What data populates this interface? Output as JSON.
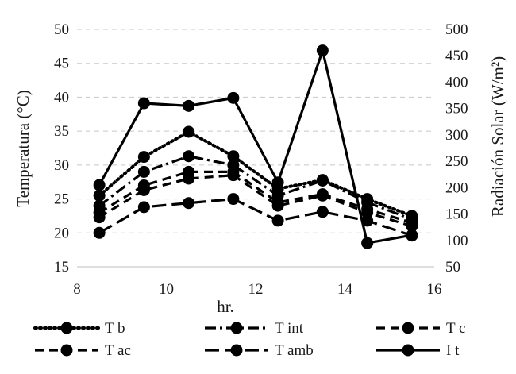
{
  "chart_data": {
    "type": "line",
    "xlabel": "hr.",
    "ylabel": "Temperatura (°C)",
    "y2label": "Radiación Solar (W/m²)",
    "xlim": [
      8,
      16
    ],
    "ylim": [
      15,
      50
    ],
    "y2lim": [
      50,
      500
    ],
    "xticks": [
      8,
      10,
      12,
      14,
      16
    ],
    "yticks": [
      15,
      20,
      25,
      30,
      35,
      40,
      45,
      50
    ],
    "y2ticks": [
      50,
      100,
      150,
      200,
      250,
      300,
      350,
      400,
      450,
      500
    ],
    "grid": "horizontal dashed",
    "legend_position": "bottom",
    "x": [
      8.5,
      9.5,
      10.5,
      11.5,
      12.5,
      13.5,
      14.5,
      15.5
    ],
    "series": [
      {
        "name": "T b",
        "axis": "left",
        "dash": "dotted",
        "values": [
          25.5,
          31.2,
          34.9,
          31.3,
          26.5,
          27.8,
          25.0,
          22.5
        ]
      },
      {
        "name": "T int",
        "axis": "left",
        "dash": "dashdot",
        "values": [
          24.0,
          29.0,
          31.3,
          30.0,
          25.5,
          27.7,
          24.5,
          22.0
        ]
      },
      {
        "name": "T c",
        "axis": "left",
        "dash": "dash",
        "values": [
          23.0,
          27.0,
          29.0,
          29.0,
          24.5,
          25.7,
          23.5,
          21.5
        ]
      },
      {
        "name": "T ac",
        "axis": "left",
        "dash": "dash",
        "values": [
          22.3,
          26.3,
          28.0,
          28.5,
          24.0,
          25.5,
          23.0,
          21.0
        ]
      },
      {
        "name": "T amb",
        "axis": "left",
        "dash": "longdash",
        "values": [
          20.0,
          23.8,
          24.4,
          25.0,
          21.8,
          23.1,
          21.8,
          19.6
        ]
      },
      {
        "name": "I t",
        "axis": "right",
        "dash": "solid",
        "values": [
          205,
          360,
          355,
          370,
          210,
          460,
          95,
          110
        ]
      }
    ],
    "color": "#000000"
  }
}
